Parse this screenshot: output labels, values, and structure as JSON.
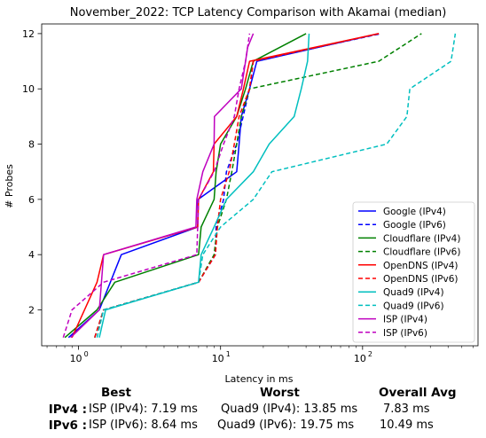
{
  "chart_data": {
    "type": "line",
    "title": "November_2022: TCP Latency Comparison with Akamai (median)",
    "xlabel": "Latency in ms",
    "ylabel": "# Probes",
    "xscale": "log",
    "xlim": [
      0.55,
      650
    ],
    "ylim": [
      0.7,
      12.35
    ],
    "x_ticks": [
      {
        "value": 1,
        "base": "10",
        "exp": "0"
      },
      {
        "value": 10,
        "base": "10",
        "exp": "1"
      },
      {
        "value": 100,
        "base": "10",
        "exp": "2"
      }
    ],
    "y_ticks": [
      "2",
      "4",
      "6",
      "8",
      "10",
      "12"
    ],
    "grid": false,
    "legend_position": "lower-right",
    "series": [
      {
        "name": "Google (IPv4)",
        "color": "#0000ff",
        "dash": "solid",
        "x": [
          0.85,
          1.4,
          2.0,
          6.9,
          6.95,
          13.0,
          13.5,
          14.0,
          16.0,
          18.0,
          130.0
        ],
        "y": [
          1,
          2,
          4,
          5,
          6,
          7,
          8,
          9,
          10,
          11,
          12
        ]
      },
      {
        "name": "Google (IPv6)",
        "color": "#0000ff",
        "dash": "dashed",
        "x": [
          1.3,
          1.5,
          7.0,
          9.2,
          9.3,
          10.5,
          11.0,
          13.0,
          16.0,
          17.0,
          135.0
        ],
        "y": [
          1,
          2,
          3,
          4,
          5,
          6,
          7,
          8,
          10,
          11,
          12
        ]
      },
      {
        "name": "Cloudflare (IPv4)",
        "color": "#008000",
        "dash": "solid",
        "x": [
          0.8,
          1.35,
          1.8,
          7.0,
          7.3,
          9.0,
          9.3,
          10.0,
          13.0,
          15.0,
          17.0,
          40.0
        ],
        "y": [
          1,
          2,
          3,
          4,
          5,
          6,
          7,
          8,
          9,
          10,
          11,
          12
        ]
      },
      {
        "name": "Cloudflare (IPv6)",
        "color": "#008000",
        "dash": "dashed",
        "x": [
          1.3,
          1.5,
          7.0,
          9.0,
          9.5,
          11.0,
          12.0,
          13.0,
          14.0,
          16.0,
          130.0,
          260.0
        ],
        "y": [
          1,
          2,
          3,
          4,
          5,
          6,
          7,
          8,
          9,
          10,
          11,
          12
        ]
      },
      {
        "name": "OpenDNS (IPv4)",
        "color": "#ff0000",
        "dash": "solid",
        "x": [
          0.9,
          1.35,
          1.5,
          6.9,
          7.0,
          8.9,
          9.0,
          13.0,
          14.5,
          16.0,
          130.0
        ],
        "y": [
          1,
          3,
          4,
          5,
          6,
          7,
          8,
          9,
          10,
          11,
          12
        ]
      },
      {
        "name": "OpenDNS (IPv6)",
        "color": "#ff0000",
        "dash": "dashed",
        "x": [
          1.3,
          1.5,
          7.0,
          9.2,
          9.5,
          10.0,
          11.5,
          12.5,
          13.5,
          16.0,
          17.0,
          130.0
        ],
        "y": [
          1,
          2,
          3,
          4,
          5,
          6,
          7,
          8,
          9,
          10,
          11,
          12
        ]
      },
      {
        "name": "Quad9 (IPv4)",
        "color": "#00bfbf",
        "dash": "solid",
        "x": [
          1.4,
          1.55,
          7.0,
          7.3,
          9.0,
          11.0,
          17.0,
          22.0,
          33.0,
          37.0,
          41.0,
          42.0
        ],
        "y": [
          1,
          2,
          3,
          4,
          5,
          6,
          7,
          8,
          9,
          10,
          11,
          12
        ]
      },
      {
        "name": "Quad9 (IPv6)",
        "color": "#00bfbf",
        "dash": "dashed",
        "x": [
          1.35,
          1.5,
          7.0,
          7.5,
          10.0,
          17.0,
          23.0,
          148.0,
          205.0,
          215.0,
          420.0,
          450.0
        ],
        "y": [
          1,
          2,
          3,
          4,
          5,
          6,
          7,
          8,
          9,
          10,
          11,
          12
        ]
      },
      {
        "name": "ISP (IPv4)",
        "color": "#bf00bf",
        "dash": "solid",
        "x": [
          0.88,
          1.4,
          1.5,
          6.7,
          6.8,
          7.5,
          9.0,
          9.05,
          14.0,
          15.0,
          15.5,
          17.0
        ],
        "y": [
          1,
          2,
          4,
          5,
          6,
          7,
          8,
          9,
          10,
          11,
          11.5,
          12
        ]
      },
      {
        "name": "ISP (IPv6)",
        "color": "#bf00bf",
        "dash": "dashed",
        "x": [
          0.78,
          0.9,
          1.5,
          6.8,
          6.9,
          7.0,
          9.0,
          10.5,
          12.5,
          13.5,
          15.0,
          16.0
        ],
        "y": [
          1,
          2,
          3,
          4,
          5,
          6,
          7,
          8,
          9,
          10,
          11,
          12
        ]
      }
    ]
  },
  "summary": {
    "headers": {
      "best": "Best",
      "worst": "Worst",
      "avg": "Overall Avg"
    },
    "rows": [
      {
        "label": "IPv4 :",
        "best": "ISP (IPv4): 7.19 ms",
        "worst": "Quad9 (IPv4): 13.85 ms",
        "avg": "7.83 ms"
      },
      {
        "label": "IPv6 :",
        "best": "ISP (IPv6): 8.64 ms",
        "worst": "Quad9 (IPv6): 19.75 ms",
        "avg": "10.49 ms"
      }
    ]
  }
}
